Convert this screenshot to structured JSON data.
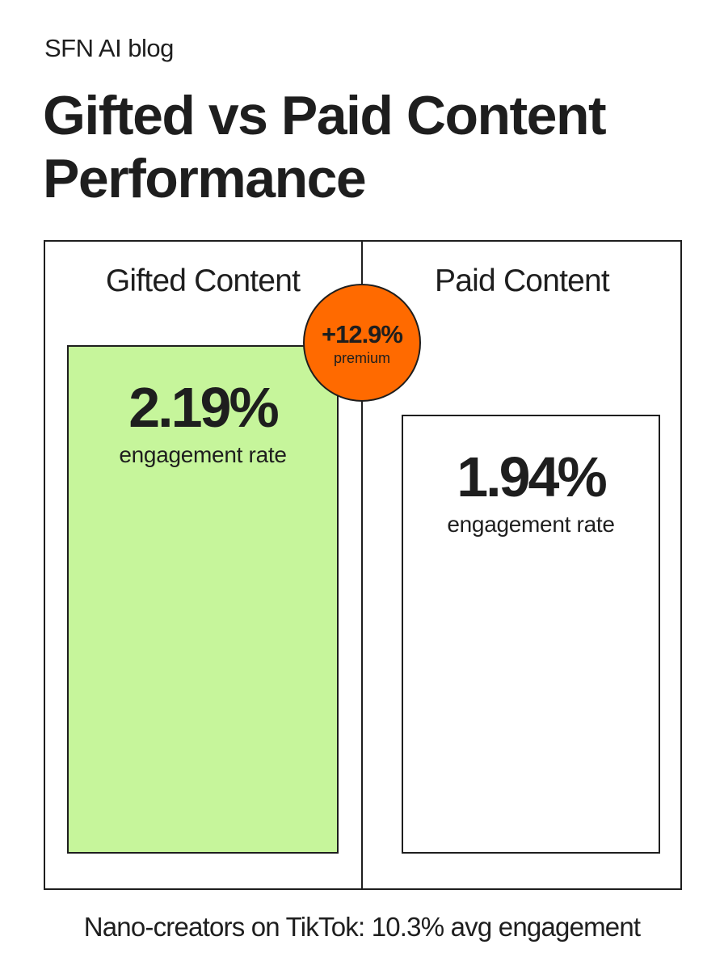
{
  "header": {
    "brand": "SFN AI blog",
    "title": "Gifted vs Paid Content Performance"
  },
  "columns": [
    {
      "label": "Gifted Content",
      "value": "2.19%",
      "metric": "engagement rate"
    },
    {
      "label": "Paid Content",
      "value": "1.94%",
      "metric": "engagement rate"
    }
  ],
  "badge": {
    "value": "+12.9%",
    "label": "premium"
  },
  "footer": {
    "note": "Nano-creators on TikTok: 10.3% avg engagement"
  },
  "colors": {
    "gifted_fill": "#c6f59b",
    "paid_fill": "#ffffff",
    "badge_fill": "#ff6a00",
    "stroke": "#1e1e1e"
  },
  "chart_data": {
    "type": "bar",
    "title": "Gifted vs Paid Content Performance",
    "categories": [
      "Gifted Content",
      "Paid Content"
    ],
    "values": [
      2.19,
      1.94
    ],
    "unit": "%",
    "ylabel": "engagement rate",
    "annotations": [
      "+12.9% premium",
      "Nano-creators on TikTok: 10.3% avg engagement"
    ],
    "grid": false,
    "legend": "none"
  }
}
